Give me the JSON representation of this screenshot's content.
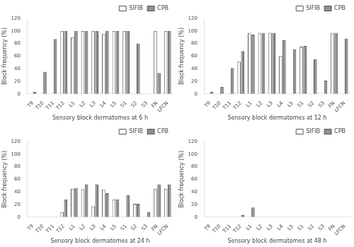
{
  "chart_data": [
    {
      "type": "bar",
      "xlabel": "Sensory block dermatomes at 6 h",
      "ylabel": "Block frequency (%)",
      "categories": [
        "T9",
        "T10",
        "T11",
        "T12",
        "L1",
        "L2",
        "L3",
        "L4",
        "L5",
        "S1",
        "S2",
        "S3",
        "FN",
        "LFCN"
      ],
      "series": [
        {
          "name": "SIFIB",
          "color": "#ffffff",
          "values": [
            0,
            0,
            0,
            100,
            90,
            100,
            100,
            95,
            100,
            100,
            0,
            0,
            100,
            100
          ]
        },
        {
          "name": "CPB",
          "color": "#909090",
          "values": [
            3,
            35,
            87,
            100,
            100,
            100,
            100,
            100,
            100,
            100,
            80,
            0,
            33,
            100
          ]
        }
      ],
      "ylim": [
        0,
        120
      ],
      "yticks": [
        0,
        20,
        40,
        60,
        80,
        100,
        120
      ],
      "grid": false,
      "legend": "upper right"
    },
    {
      "type": "bar",
      "xlabel": "Sensory block dermatomes at 12 h",
      "ylabel": "Block frequency (%)",
      "categories": [
        "T9",
        "T10",
        "T11",
        "T12",
        "L1",
        "L2",
        "L3",
        "L4",
        "L5",
        "S1",
        "S2",
        "S3",
        "FN",
        "LFCN"
      ],
      "series": [
        {
          "name": "SIFIB",
          "color": "#ffffff",
          "values": [
            0,
            0,
            0,
            51,
            97,
            97,
            97,
            60,
            0,
            75,
            0,
            0,
            97,
            0
          ]
        },
        {
          "name": "CPB",
          "color": "#909090",
          "values": [
            3,
            11,
            41,
            68,
            94,
            97,
            97,
            85,
            71,
            76,
            55,
            21,
            97,
            88
          ]
        }
      ],
      "ylim": [
        0,
        120
      ],
      "yticks": [
        0,
        20,
        40,
        60,
        80,
        100,
        120
      ],
      "grid": false,
      "legend": "upper right"
    },
    {
      "type": "bar",
      "xlabel": "Sensory block dermatomes at 24 h",
      "ylabel": "Block frequency (%)",
      "categories": [
        "T9",
        "T10",
        "T11",
        "T12",
        "L1",
        "L2",
        "L3",
        "L4",
        "L5",
        "S1",
        "S2",
        "S3",
        "FN",
        "LFCN"
      ],
      "series": [
        {
          "name": "SIFIB",
          "color": "#ffffff",
          "values": [
            0,
            0,
            0,
            8,
            45,
            44,
            17,
            44,
            28,
            0,
            21,
            0,
            45,
            45
          ]
        },
        {
          "name": "CPB",
          "color": "#909090",
          "values": [
            0,
            0,
            0,
            28,
            46,
            52,
            52,
            38,
            28,
            35,
            21,
            8,
            52,
            52
          ]
        }
      ],
      "ylim": [
        0,
        120
      ],
      "yticks": [
        0,
        20,
        40,
        60,
        80,
        100,
        120
      ],
      "grid": false,
      "legend": "upper right"
    },
    {
      "type": "bar",
      "xlabel": "Sensory block dermatomes at 48 h",
      "ylabel": "Block frequency (%)",
      "categories": [
        "T9",
        "T10",
        "T11",
        "T12",
        "L1",
        "L2",
        "L3",
        "L4",
        "L5",
        "S1",
        "S2",
        "S3",
        "FN",
        "LFCN"
      ],
      "series": [
        {
          "name": "SIFIB",
          "color": "#ffffff",
          "values": [
            0,
            0,
            0,
            0,
            0,
            0,
            0,
            0,
            0,
            0,
            0,
            0,
            0,
            0
          ]
        },
        {
          "name": "CPB",
          "color": "#909090",
          "values": [
            0,
            0,
            0,
            3,
            15,
            0,
            0,
            0,
            0,
            0,
            0,
            0,
            0,
            0
          ]
        }
      ],
      "ylim": [
        0,
        120
      ],
      "yticks": [
        0,
        20,
        40,
        60,
        80,
        100,
        120
      ],
      "grid": false,
      "legend": "upper right"
    }
  ]
}
